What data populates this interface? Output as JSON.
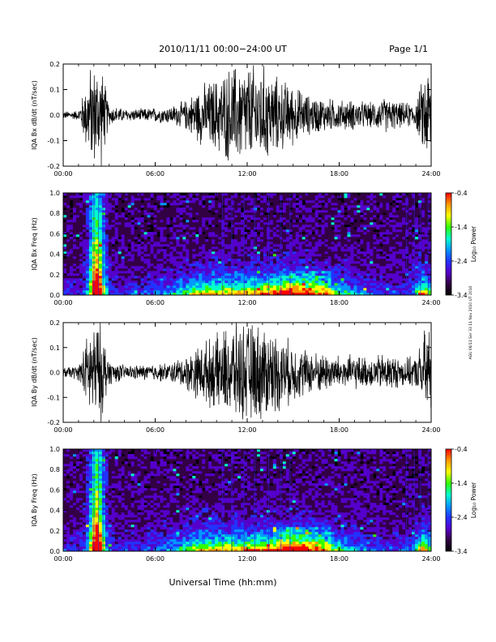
{
  "header": {
    "title": "2010/11/11   00:00−24:00 UT",
    "page": "Page 1/1"
  },
  "side_note": "AGU 06/11 Ser 33 11 Nov 2010 UT 2010",
  "footer": {
    "xlabel": "Universal Time (hh:mm)"
  },
  "colorbar": {
    "label": "Log₁₀ Power",
    "ticks": [
      "-0.4",
      "-1.4",
      "-2.4",
      "-3.4"
    ],
    "colors": [
      "#ff0000",
      "#ff9900",
      "#ffff00",
      "#33ff00",
      "#00ffcc",
      "#0099ff",
      "#2233ff",
      "#5500cc",
      "#330044",
      "#000000"
    ]
  },
  "chart_data": [
    {
      "type": "line",
      "title": "",
      "ylabel": "IQA Bx dB/dt (nT/sec)",
      "xlabel": "",
      "xticks": [
        "00:00",
        "06:00",
        "12:00",
        "18:00",
        "24:00"
      ],
      "yticks": [
        "0.2",
        "0.1",
        "0.0",
        "-0.1",
        "-0.2"
      ],
      "xlim": [
        0,
        24
      ],
      "ylim": [
        -0.2,
        0.2
      ],
      "series": [
        {
          "x": [
            0,
            1,
            1.8,
            2.1,
            2.5,
            3,
            4,
            5,
            6,
            7,
            8,
            9,
            10,
            11,
            12,
            13,
            14,
            15,
            16,
            17,
            18,
            19,
            20,
            21,
            22,
            23,
            23.7,
            24
          ],
          "y_amplitude": [
            0.015,
            0.02,
            0.2,
            0.2,
            0.2,
            0.04,
            0.025,
            0.025,
            0.03,
            0.035,
            0.06,
            0.12,
            0.15,
            0.2,
            0.2,
            0.2,
            0.15,
            0.12,
            0.08,
            0.07,
            0.06,
            0.06,
            0.05,
            0.07,
            0.05,
            0.05,
            0.2,
            0.2
          ]
        }
      ]
    },
    {
      "type": "heatmap",
      "title": "",
      "ylabel": "IQA Bx Freq (Hz)",
      "xlabel": "",
      "xticks": [
        "00:00",
        "06:00",
        "12:00",
        "18:00",
        "24:00"
      ],
      "yticks": [
        "1.0",
        "0.8",
        "0.6",
        "0.4",
        "0.2",
        "0.0"
      ],
      "xlim": [
        0,
        24
      ],
      "ylim": [
        0,
        1.0
      ],
      "zlim": [
        -3.4,
        -0.4
      ]
    },
    {
      "type": "line",
      "title": "",
      "ylabel": "IQA By dB/dt (nT/sec)",
      "xlabel": "",
      "xticks": [
        "00:00",
        "06:00",
        "12:00",
        "18:00",
        "24:00"
      ],
      "yticks": [
        "0.2",
        "0.1",
        "0.0",
        "-0.1",
        "-0.2"
      ],
      "xlim": [
        0,
        24
      ],
      "ylim": [
        -0.2,
        0.2
      ],
      "series": [
        {
          "x": [
            0,
            1,
            1.8,
            2.1,
            2.5,
            3,
            4,
            5,
            6,
            7,
            8,
            9,
            10,
            11,
            12,
            13,
            14,
            15,
            16,
            17,
            18,
            19,
            20,
            21,
            22,
            23,
            23.7,
            24
          ],
          "y_amplitude": [
            0.02,
            0.03,
            0.2,
            0.2,
            0.2,
            0.05,
            0.03,
            0.03,
            0.035,
            0.04,
            0.07,
            0.12,
            0.15,
            0.2,
            0.2,
            0.2,
            0.16,
            0.12,
            0.09,
            0.08,
            0.07,
            0.07,
            0.06,
            0.08,
            0.06,
            0.06,
            0.2,
            0.2
          ]
        }
      ]
    },
    {
      "type": "heatmap",
      "title": "",
      "ylabel": "IQA By Freq (Hz)",
      "xlabel": "Universal Time (hh:mm)",
      "xticks": [
        "00:00",
        "06:00",
        "12:00",
        "18:00",
        "24:00"
      ],
      "yticks": [
        "1.0",
        "0.8",
        "0.6",
        "0.4",
        "0.2",
        "0.0"
      ],
      "xlim": [
        0,
        24
      ],
      "ylim": [
        0,
        1.0
      ],
      "zlim": [
        -3.4,
        -0.4
      ]
    }
  ]
}
